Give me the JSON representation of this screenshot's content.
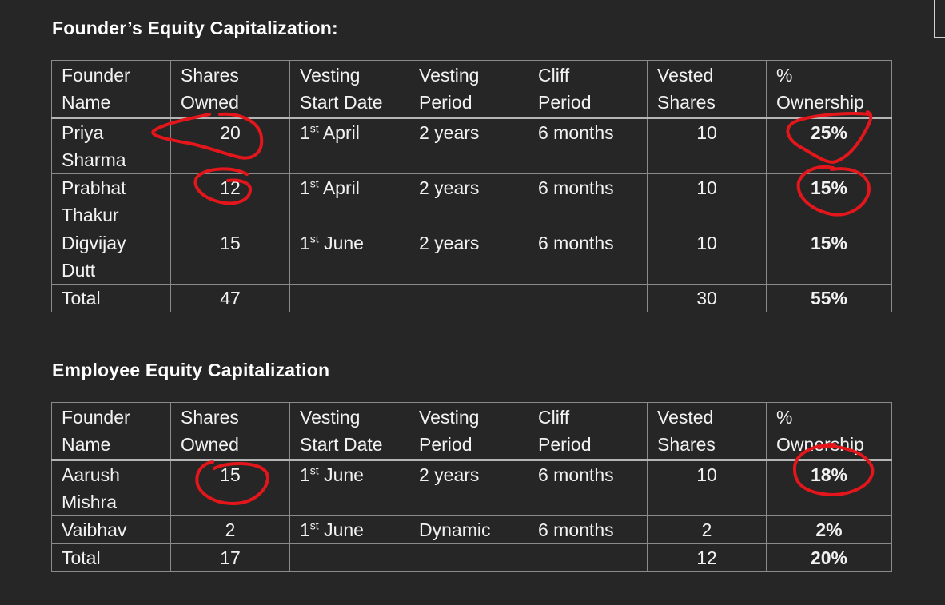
{
  "founder_section": {
    "title": "Founder’s Equity Capitalization:",
    "headers": [
      [
        "Founder",
        "Name"
      ],
      [
        "Shares",
        "Owned"
      ],
      [
        "Vesting",
        "Start Date"
      ],
      [
        "Vesting",
        "Period"
      ],
      [
        "Cliff",
        "Period"
      ],
      [
        "Vested",
        "Shares"
      ],
      [
        "%",
        "Ownership"
      ]
    ],
    "rows": [
      {
        "name": [
          "Priya",
          "Sharma"
        ],
        "shares": "20",
        "start_day": "1",
        "start_sup": "st",
        "start_month": "April",
        "period": "2 years",
        "cliff": "6 months",
        "vested": "10",
        "ownership": "25%"
      },
      {
        "name": [
          "Prabhat",
          "Thakur"
        ],
        "shares": "12",
        "start_day": "1",
        "start_sup": "st",
        "start_month": "April",
        "period": "2 years",
        "cliff": "6 months",
        "vested": "10",
        "ownership": "15%"
      },
      {
        "name": [
          "Digvijay",
          "Dutt"
        ],
        "shares": "15",
        "start_day": "1",
        "start_sup": "st",
        "start_month": "June",
        "period": "2 years",
        "cliff": "6 months",
        "vested": "10",
        "ownership": "15%"
      }
    ],
    "total": {
      "label": "Total",
      "shares": "47",
      "vested": "30",
      "ownership": "55%"
    }
  },
  "employee_section": {
    "title": "Employee Equity Capitalization",
    "headers": [
      [
        "Founder",
        "Name"
      ],
      [
        "Shares",
        "Owned"
      ],
      [
        "Vesting",
        "Start Date"
      ],
      [
        "Vesting",
        "Period"
      ],
      [
        "Cliff",
        "Period"
      ],
      [
        "Vested",
        "Shares"
      ],
      [
        "%",
        "Ownership"
      ]
    ],
    "rows": [
      {
        "name": [
          "Aarush",
          "Mishra"
        ],
        "shares": "15",
        "start_day": "1",
        "start_sup": "st",
        "start_month": "June",
        "period": "2 years",
        "cliff": "6 months",
        "vested": "10",
        "ownership": "18%"
      },
      {
        "name": [
          "Vaibhav"
        ],
        "shares": "2",
        "start_day": "1",
        "start_sup": "st",
        "start_month": "June",
        "period": "Dynamic",
        "cliff": "6 months",
        "vested": "2",
        "ownership": "2%"
      }
    ],
    "total": {
      "label": "Total",
      "shares": "17",
      "vested": "12",
      "ownership": "20%"
    }
  },
  "annotation_color": "#e3161b"
}
